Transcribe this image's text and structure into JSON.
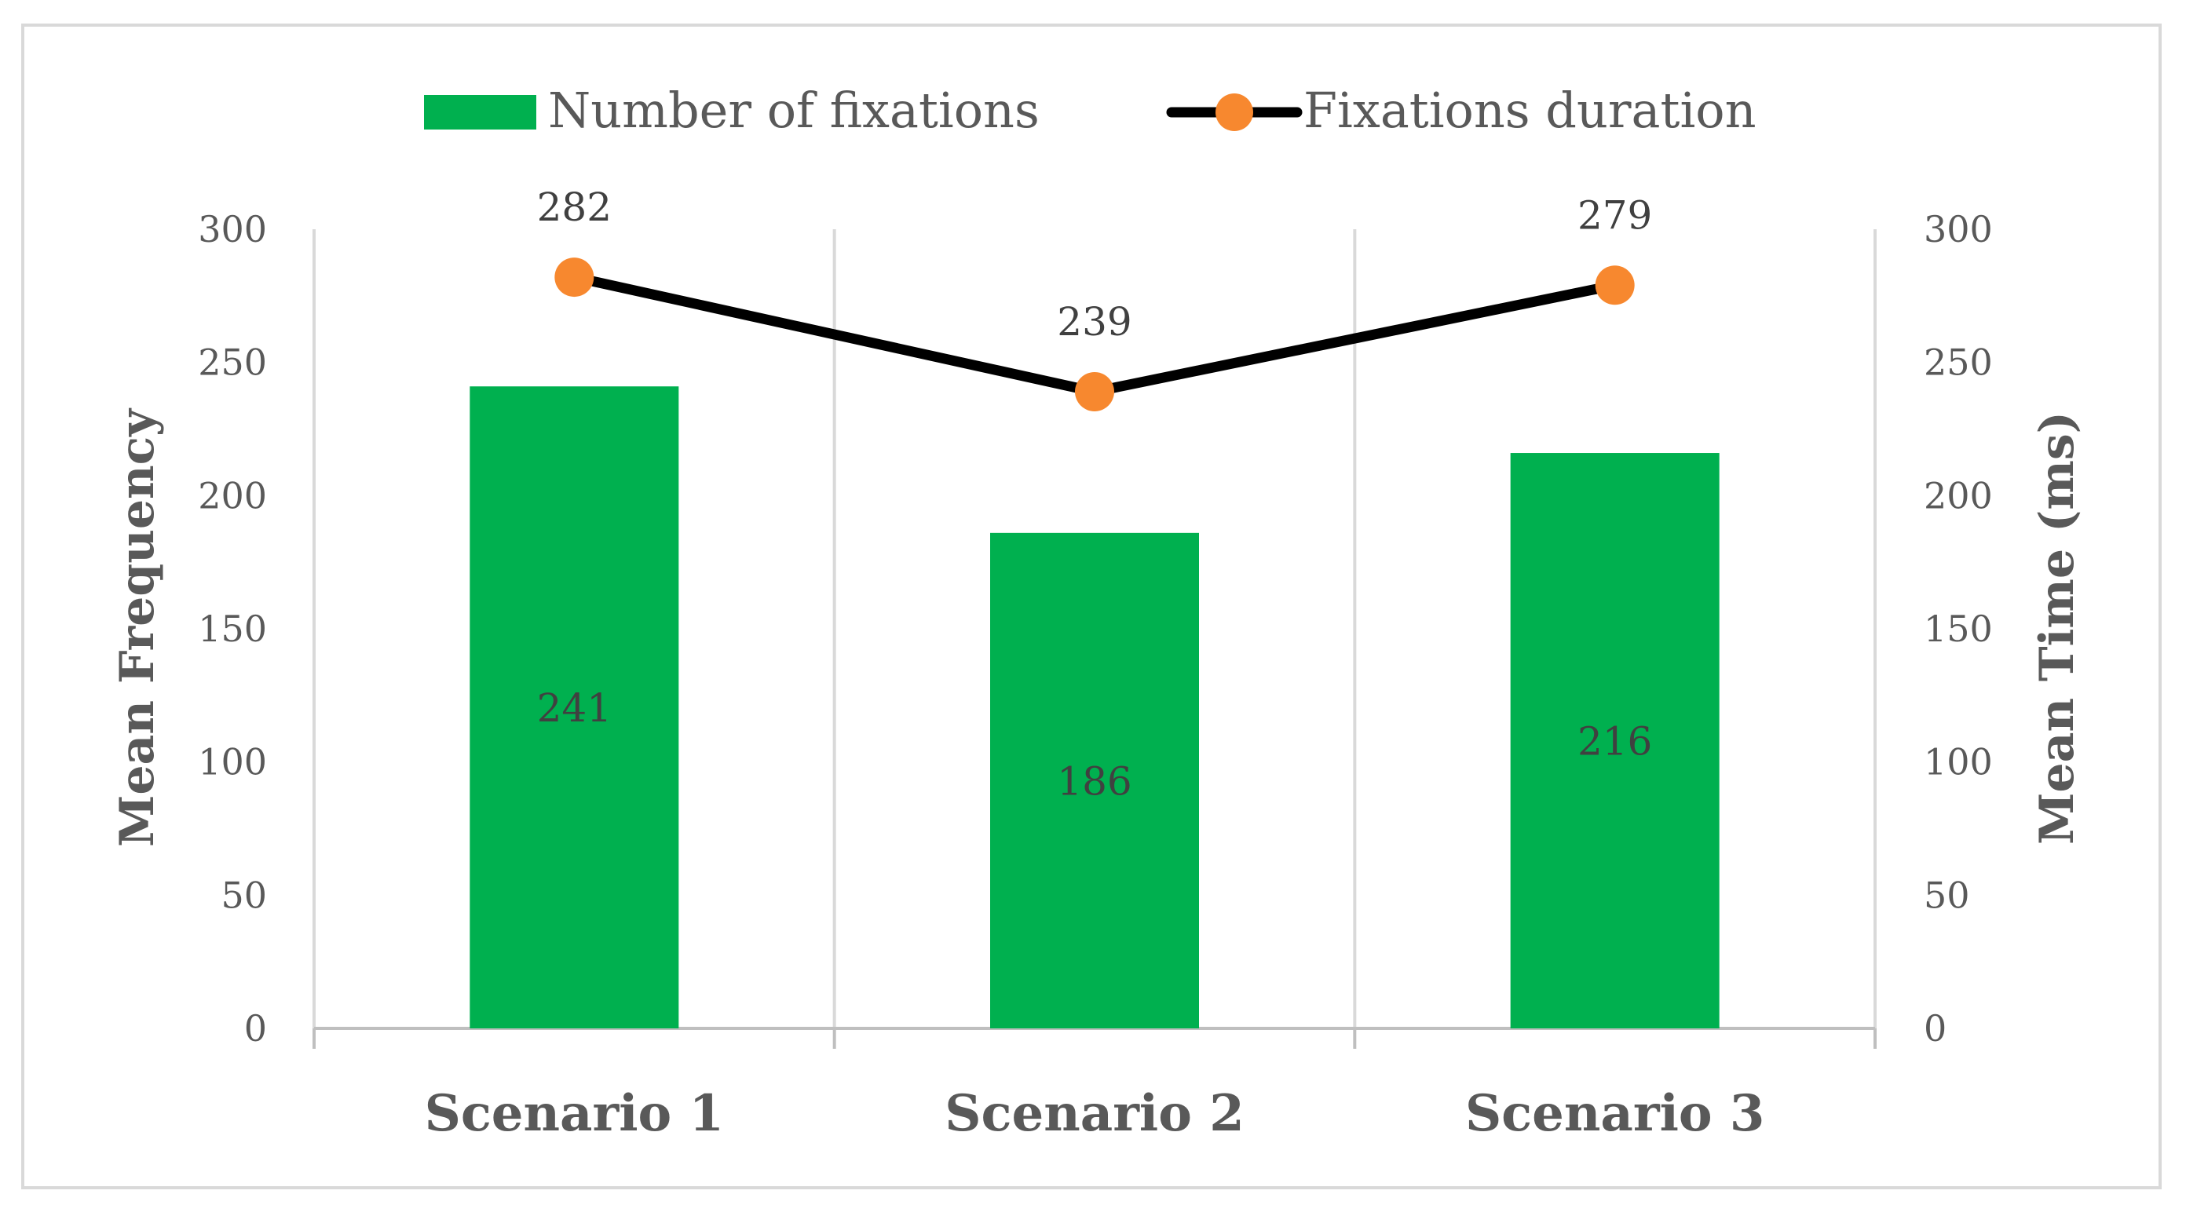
{
  "chart_data": {
    "type": "bar",
    "title": "",
    "categories": [
      "Scenario 1",
      "Scenario 2",
      "Scenario 3"
    ],
    "series": [
      {
        "name": "Number of fixations",
        "type": "bar",
        "axis": "left",
        "values": [
          241,
          186,
          216
        ],
        "color": "#00b04f"
      },
      {
        "name": "Fixations duration",
        "type": "line",
        "axis": "right",
        "values": [
          282,
          239,
          279
        ],
        "line_color": "#000000",
        "marker_color": "#f7882f"
      }
    ],
    "ylabel": "Mean Frequency",
    "y2label": "Mean Time (ms)",
    "ylim": [
      0,
      300
    ],
    "y2lim": [
      0,
      300
    ],
    "yticks": [
      "0",
      "50",
      "100",
      "150",
      "200",
      "250",
      "300"
    ],
    "y2ticks": [
      "0",
      "50",
      "100",
      "150",
      "200",
      "250",
      "300"
    ],
    "bar_labels": [
      "241",
      "186",
      "216"
    ],
    "line_labels": [
      "282",
      "239",
      "279"
    ],
    "legend_position": "top",
    "grid": "vertical"
  }
}
